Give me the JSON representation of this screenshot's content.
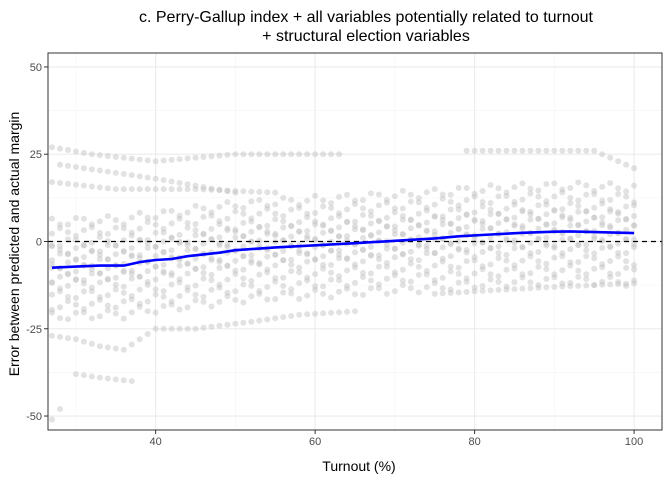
{
  "chart_data": {
    "type": "scatter",
    "title": [
      "c. Perry-Gallup index + all variables potentially related to turnout",
      "+ structural election variables"
    ],
    "xlabel": "Turnout (%)",
    "ylabel": "Error between predicted and actual margin",
    "xlim": [
      26.5,
      103.5
    ],
    "ylim": [
      -54,
      54
    ],
    "xticks": [
      40,
      60,
      80,
      100
    ],
    "yticks": [
      -50,
      -25,
      0,
      25,
      50
    ],
    "grid": true,
    "reference_line": {
      "y": 0,
      "style": "dashed",
      "color": "#000000"
    },
    "colors": {
      "points": "#bebebe",
      "smooth": "#0000ff",
      "grid_major": "#ebebeb",
      "grid_minor": "#f5f5f5",
      "panel_border": "#333333"
    },
    "point_bands": {
      "x_start": 27,
      "x_end": 100,
      "x_step": 1,
      "band_offsets": [
        -14,
        -11,
        -8,
        -5,
        -3,
        -1,
        1,
        3,
        5,
        7,
        10,
        13
      ],
      "upper_curves": [
        {
          "x": [
            27,
            32,
            36,
            40,
            50,
            58,
            63
          ],
          "y": [
            27,
            25,
            24,
            23,
            25,
            25,
            25
          ]
        },
        {
          "x": [
            79,
            85,
            90,
            95,
            100
          ],
          "y": [
            26,
            26,
            26,
            26,
            21
          ]
        },
        {
          "x": [
            27,
            35,
            45,
            55
          ],
          "y": [
            17,
            15,
            15,
            14
          ]
        },
        {
          "x": [
            28,
            34,
            40,
            45,
            50
          ],
          "y": [
            22,
            20,
            18,
            16,
            14
          ]
        }
      ],
      "lower_curves": [
        {
          "x": [
            27,
            30,
            33,
            36,
            40,
            45,
            52,
            58,
            65
          ],
          "y": [
            -27,
            -28,
            -30,
            -31,
            -25,
            -25,
            -23,
            -21,
            -20
          ]
        },
        {
          "x": [
            30,
            33,
            37
          ],
          "y": [
            -38,
            -39,
            -40
          ]
        },
        {
          "x": [
            27,
            28
          ],
          "y": [
            -51,
            -48
          ]
        },
        {
          "x": [
            75,
            82,
            90,
            100
          ],
          "y": [
            -15,
            -14,
            -13,
            -12
          ]
        }
      ]
    },
    "smooth_line": {
      "x": [
        27,
        30,
        33,
        36,
        38,
        40,
        42,
        44,
        46,
        48,
        50,
        55,
        60,
        65,
        70,
        75,
        78,
        82,
        86,
        90,
        92,
        95,
        100
      ],
      "y": [
        -7.5,
        -7.2,
        -6.9,
        -6.9,
        -5.9,
        -5.3,
        -5.0,
        -4.2,
        -3.7,
        -3.2,
        -2.5,
        -1.7,
        -1.1,
        -0.5,
        0.2,
        0.9,
        1.5,
        2.0,
        2.5,
        2.8,
        2.9,
        2.7,
        2.4
      ]
    }
  }
}
